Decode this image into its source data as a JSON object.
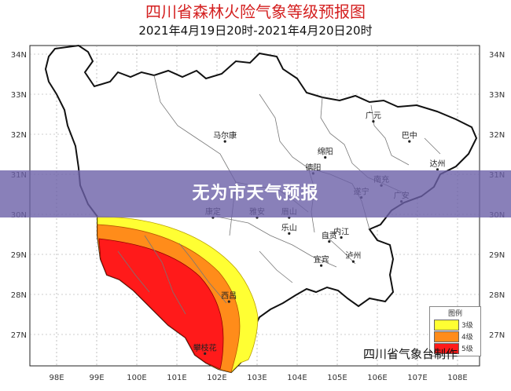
{
  "header": {
    "title": "四川省森林火险气象等级预报图",
    "subtitle": "2021年4月19日20时-2021年4月20日20时"
  },
  "banner": {
    "text": "无为市天气预报"
  },
  "credit": "四川省气象台制作",
  "legend": {
    "title": "图例",
    "items": [
      {
        "label": "3级",
        "color": "#ffff33"
      },
      {
        "label": "4级",
        "color": "#ff8c1a"
      },
      {
        "label": "5级",
        "color": "#ff1a1a"
      }
    ]
  },
  "axes": {
    "lat_labels": [
      "34N",
      "33N",
      "32N",
      "31N",
      "30N",
      "29N",
      "28N",
      "27N"
    ],
    "lon_labels": [
      "98E",
      "99E",
      "100E",
      "101E",
      "102E",
      "103E",
      "104E",
      "105E",
      "106E",
      "107E",
      "108E"
    ]
  },
  "cities": [
    {
      "name": "广元",
      "lon": 105.9,
      "lat": 32.4
    },
    {
      "name": "巴中",
      "lon": 106.8,
      "lat": 31.9
    },
    {
      "name": "马尔康",
      "lon": 102.2,
      "lat": 31.9
    },
    {
      "name": "绵阳",
      "lon": 104.7,
      "lat": 31.5
    },
    {
      "name": "德阳",
      "lon": 104.4,
      "lat": 31.1
    },
    {
      "name": "达州",
      "lon": 107.5,
      "lat": 31.2
    },
    {
      "name": "南充",
      "lon": 106.1,
      "lat": 30.8
    },
    {
      "name": "遂宁",
      "lon": 105.6,
      "lat": 30.5
    },
    {
      "name": "广安",
      "lon": 106.6,
      "lat": 30.4
    },
    {
      "name": "康定",
      "lon": 101.9,
      "lat": 30.0
    },
    {
      "name": "雅安",
      "lon": 103.0,
      "lat": 30.0
    },
    {
      "name": "眉山",
      "lon": 103.8,
      "lat": 30.0
    },
    {
      "name": "乐山",
      "lon": 103.8,
      "lat": 29.6
    },
    {
      "name": "自贡",
      "lon": 104.8,
      "lat": 29.4
    },
    {
      "name": "内江",
      "lon": 105.1,
      "lat": 29.5
    },
    {
      "name": "宜宾",
      "lon": 104.6,
      "lat": 28.8
    },
    {
      "name": "泸州",
      "lon": 105.4,
      "lat": 28.9
    },
    {
      "name": "西昌",
      "lon": 102.3,
      "lat": 27.9
    },
    {
      "name": "攀枝花",
      "lon": 101.7,
      "lat": 26.6
    }
  ]
}
